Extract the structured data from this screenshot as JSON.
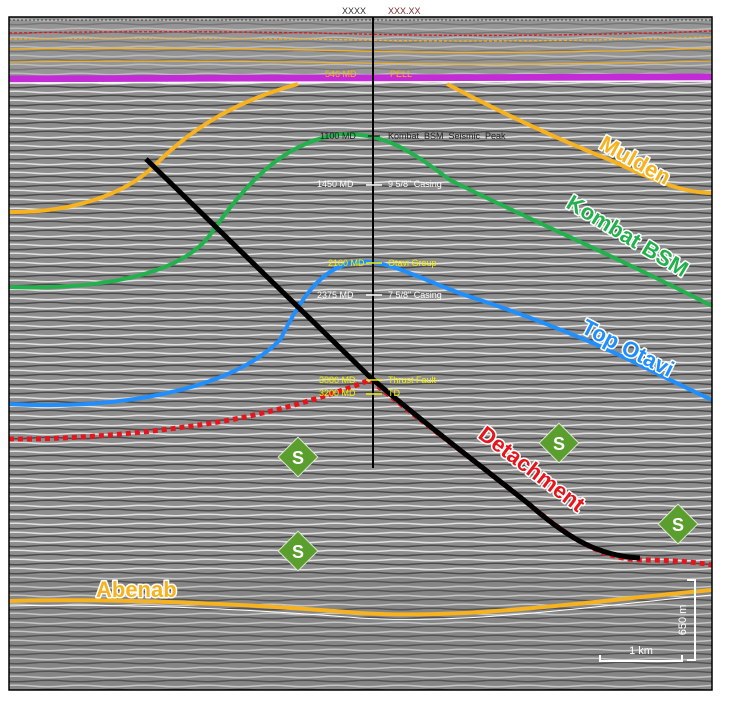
{
  "colors": {
    "purple": "#c22bd6",
    "orange": "#f7b21f",
    "green": "#22b14c",
    "blue": "#1f8fff",
    "red": "#e8141b",
    "black": "#000000",
    "salt_fill": "#5a9e2e",
    "seismic_grey": "#8c8c8c"
  },
  "horizons": {
    "mulden": "Mulden",
    "kombat": "Kombat BSM",
    "otavi": "Top Otavi",
    "detachment": "Detachment",
    "abenab": "Abenab"
  },
  "well_annotations": {
    "top": [
      "XXXX",
      "XXX.XX"
    ],
    "purple": [
      "546 MD",
      "PELL"
    ],
    "kombat": [
      "1100 MD",
      "Kombat_BSM_Seismic_Peak"
    ],
    "casing1": [
      "1450 MD",
      "9 5/8\" Casing"
    ],
    "otavi": [
      "2100 MD",
      "Otavi Group"
    ],
    "casing2": [
      "2375 MD",
      "7 5/8\" Casing"
    ],
    "thrust": [
      "3086 MD",
      "Thrust Fault"
    ],
    "td": [
      "3200 MD",
      "TD"
    ]
  },
  "salt_label": "S",
  "scale": {
    "horizontal": "1 km",
    "vertical": "650 m"
  }
}
